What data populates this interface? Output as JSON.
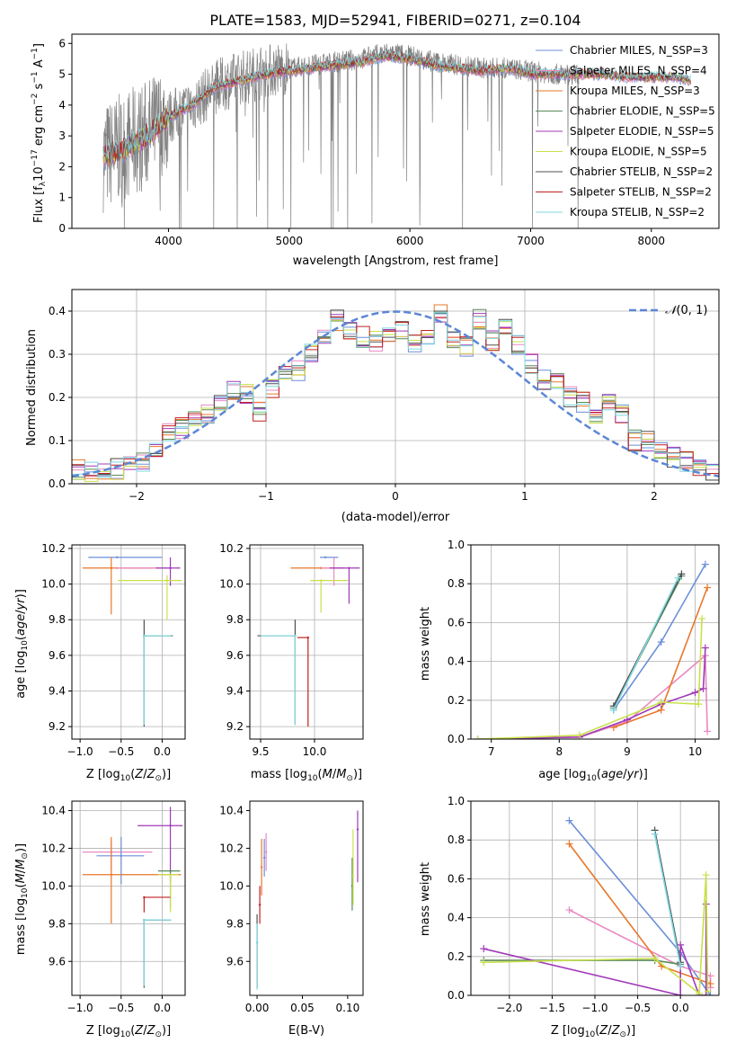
{
  "figure": {
    "title": "PLATE=1583, MJD=52941, FIBERID=0271, z=0.104"
  },
  "chart_data": [
    {
      "type": "line",
      "panel": "spectrum",
      "title": "PLATE=1583, MJD=52941, FIBERID=0271, z=0.104",
      "xlabel": "wavelength [Angstrom, rest frame]",
      "ylabel": "Flux [f_λ10^-17 erg cm^-2 s^-1 A^-1]",
      "xlim": [
        3200,
        8560
      ],
      "ylim": [
        0,
        6.3
      ],
      "xticks": [
        4000,
        5000,
        6000,
        7000,
        8000
      ],
      "yticks": [
        0,
        1,
        2,
        3,
        4,
        5,
        6
      ],
      "grid": false,
      "legend_position": "upper-right",
      "data_series": {
        "name": "",
        "color": "#808080",
        "x": [
          3460,
          3600,
          3800,
          4000,
          4200,
          4400,
          4600,
          4800,
          5000,
          5200,
          5400,
          5600,
          5800,
          6000,
          6200,
          6400,
          6600,
          6800,
          7000,
          7200,
          7400
        ],
        "y": [
          2.3,
          2.6,
          3.0,
          3.6,
          4.0,
          4.6,
          4.9,
          5.1,
          5.2,
          5.3,
          5.4,
          5.5,
          5.7,
          5.6,
          5.4,
          5.3,
          5.2,
          5.2,
          5.1,
          5.0,
          5.0
        ]
      },
      "models": [
        {
          "name": "Chabrier MILES, N_SSP=3",
          "color": "#6b8fd8"
        },
        {
          "name": "Salpeter MILES, N_SSP=4",
          "color": "#e88ac2"
        },
        {
          "name": "Kroupa MILES, N_SSP=3",
          "color": "#e8772b"
        },
        {
          "name": "Chabrier ELODIE, N_SSP=5",
          "color": "#5b8a5b"
        },
        {
          "name": "Salpeter ELODIE, N_SSP=5",
          "color": "#a03ab8"
        },
        {
          "name": "Kroupa ELODIE, N_SSP=5",
          "color": "#c8e04a"
        },
        {
          "name": "Chabrier STELIB, N_SSP=2",
          "color": "#505050"
        },
        {
          "name": "Salpeter STELIB, N_SSP=2",
          "color": "#c02020"
        },
        {
          "name": "Kroupa STELIB, N_SSP=2",
          "color": "#7fd8e0"
        }
      ],
      "model_x": [
        3460,
        3600,
        3800,
        4000,
        4200,
        4400,
        4600,
        4800,
        5000,
        5200,
        5400,
        5600,
        5800,
        6000,
        6200,
        6400,
        6600,
        6800,
        7000,
        7200,
        7400,
        7600,
        7800,
        8000,
        8200,
        8330
      ],
      "model_y": [
        2.3,
        2.5,
        2.9,
        3.6,
        4.0,
        4.6,
        4.8,
        5.0,
        5.1,
        5.2,
        5.3,
        5.4,
        5.6,
        5.5,
        5.3,
        5.2,
        5.1,
        5.2,
        5.0,
        5.0,
        5.0,
        5.0,
        4.9,
        4.9,
        4.9,
        4.8
      ]
    },
    {
      "type": "step",
      "panel": "residuals",
      "xlabel": "(data-model)/error",
      "ylabel": "Normed distribution",
      "xlim": [
        -2.5,
        2.5
      ],
      "ylim": [
        0,
        0.45
      ],
      "xticks": [
        -2,
        -1,
        0,
        1,
        2
      ],
      "yticks": [
        0.0,
        0.1,
        0.2,
        0.3,
        0.4
      ],
      "grid": true,
      "legend_position": "upper-right",
      "legend": "N(0,1)",
      "gaussian_color": "#5b87d6",
      "bin_centers": [
        -2.45,
        -2.35,
        -2.25,
        -2.15,
        -2.05,
        -1.95,
        -1.85,
        -1.75,
        -1.65,
        -1.55,
        -1.45,
        -1.35,
        -1.25,
        -1.15,
        -1.05,
        -0.95,
        -0.85,
        -0.75,
        -0.65,
        -0.55,
        -0.45,
        -0.35,
        -0.25,
        -0.15,
        -0.05,
        0.05,
        0.15,
        0.25,
        0.35,
        0.45,
        0.55,
        0.65,
        0.75,
        0.85,
        0.95,
        1.05,
        1.15,
        1.25,
        1.35,
        1.45,
        1.55,
        1.65,
        1.75,
        1.85,
        1.95,
        2.05,
        2.15,
        2.25,
        2.35,
        2.45
      ],
      "histogram": [
        0.035,
        0.03,
        0.028,
        0.035,
        0.04,
        0.05,
        0.07,
        0.12,
        0.13,
        0.15,
        0.16,
        0.19,
        0.22,
        0.21,
        0.17,
        0.22,
        0.25,
        0.26,
        0.3,
        0.34,
        0.38,
        0.36,
        0.34,
        0.33,
        0.34,
        0.36,
        0.33,
        0.34,
        0.39,
        0.34,
        0.32,
        0.38,
        0.33,
        0.36,
        0.32,
        0.28,
        0.24,
        0.23,
        0.2,
        0.19,
        0.16,
        0.19,
        0.16,
        0.1,
        0.1,
        0.08,
        0.06,
        0.05,
        0.03,
        0.03
      ]
    },
    {
      "type": "errorbar",
      "panel": "age-vs-Z",
      "xlabel": "Z [log10(Z/Z⊙)]",
      "ylabel": "age  [log10(age/yr)]",
      "xlim": [
        -1.1,
        0.28
      ],
      "ylim": [
        9.13,
        10.22
      ],
      "xticks": [
        -1.0,
        -0.5,
        0.0
      ],
      "yticks": [
        9.2,
        9.4,
        9.6,
        9.8,
        10.0,
        10.2
      ],
      "grid": true,
      "points": [
        {
          "x": -0.55,
          "y": 10.15,
          "xerr": [
            0.35,
            0.55
          ],
          "yerr": [
            0.0,
            0.0
          ],
          "color": "#6b8fd8"
        },
        {
          "x": -0.62,
          "y": 10.09,
          "xerr": [
            0.35,
            0.52
          ],
          "yerr": [
            0.26,
            0.06
          ],
          "color": "#e8772b"
        },
        {
          "x": -0.55,
          "y": 10.09,
          "xerr": [
            0.0,
            0.65
          ],
          "yerr": [
            0.0,
            0.0
          ],
          "color": "#e88ac2"
        },
        {
          "x": 0.1,
          "y": 10.09,
          "xerr": [
            0.18,
            0.12
          ],
          "yerr": [
            0.1,
            0.06
          ],
          "color": "#a03ab8"
        },
        {
          "x": 0.06,
          "y": 10.02,
          "xerr": [
            0.6,
            0.18
          ],
          "yerr": [
            0.22,
            0.03
          ],
          "color": "#c8e04a"
        },
        {
          "x": -0.22,
          "y": 9.71,
          "xerr": [
            0.0,
            0.35
          ],
          "yerr": [
            0.51,
            0.09
          ],
          "color": "#505050"
        },
        {
          "x": -0.22,
          "y": 9.71,
          "xerr": [
            0.0,
            0.35
          ],
          "yerr": [
            0.0,
            0.0
          ],
          "color": "#5b8a5b"
        },
        {
          "x": -0.22,
          "y": 9.71,
          "xerr": [
            0.0,
            0.33
          ],
          "yerr": [
            0.5,
            0.0
          ],
          "color": "#7fd8e0"
        }
      ]
    },
    {
      "type": "errorbar",
      "panel": "age-vs-mass",
      "xlabel": "mass [log10(M/M⊙)]",
      "ylabel": "",
      "xlim": [
        9.4,
        10.45
      ],
      "ylim": [
        9.13,
        10.22
      ],
      "xticks": [
        9.5,
        10.0
      ],
      "yticks": [
        9.2,
        9.4,
        9.6,
        9.8,
        10.0,
        10.2
      ],
      "grid": true,
      "points": [
        {
          "x": 10.1,
          "y": 10.15,
          "xerr": [
            0.05,
            0.12
          ],
          "yerr": [
            0.0,
            0.0
          ],
          "color": "#6b8fd8"
        },
        {
          "x": 10.06,
          "y": 10.09,
          "xerr": [
            0.28,
            0.2
          ],
          "yerr": [
            0.0,
            0.0
          ],
          "color": "#e8772b"
        },
        {
          "x": 10.18,
          "y": 10.09,
          "xerr": [
            0.12,
            0.1
          ],
          "yerr": [
            0.1,
            0.06
          ],
          "color": "#e88ac2"
        },
        {
          "x": 10.32,
          "y": 10.09,
          "xerr": [
            0.18,
            0.1
          ],
          "yerr": [
            0.2,
            0.0
          ],
          "color": "#a03ab8"
        },
        {
          "x": 10.06,
          "y": 10.02,
          "xerr": [
            0.1,
            0.25
          ],
          "yerr": [
            0.18,
            0.0
          ],
          "color": "#c8e04a"
        },
        {
          "x": 9.82,
          "y": 9.71,
          "xerr": [
            0.35,
            0.0
          ],
          "yerr": [
            0.5,
            0.09
          ],
          "color": "#505050"
        },
        {
          "x": 9.94,
          "y": 9.7,
          "xerr": [
            0.1,
            0.0
          ],
          "yerr": [
            0.5,
            0.0
          ],
          "color": "#c02020"
        },
        {
          "x": 9.82,
          "y": 9.71,
          "xerr": [
            0.32,
            0.0
          ],
          "yerr": [
            0.5,
            0.0
          ],
          "color": "#7fd8e0"
        }
      ]
    },
    {
      "type": "line",
      "panel": "mass-weight-vs-age",
      "xlabel": "age  [log10(age/yr)]",
      "ylabel": "mass weight",
      "xlim": [
        6.7,
        10.35
      ],
      "ylim": [
        0,
        1.0
      ],
      "xticks": [
        7,
        8,
        9,
        10
      ],
      "yticks": [
        0.0,
        0.2,
        0.4,
        0.6,
        0.8,
        1.0
      ],
      "grid": true,
      "series": [
        {
          "name": "Chabrier MILES, N_SSP=3",
          "color": "#6b8fd8",
          "x": [
            8.8,
            9.5,
            10.15
          ],
          "y": [
            0.15,
            0.5,
            0.9
          ]
        },
        {
          "name": "Salpeter MILES, N_SSP=4",
          "color": "#e88ac2",
          "x": [
            6.8,
            8.3,
            9.0,
            10.15,
            10.18
          ],
          "y": [
            0.0,
            0.01,
            0.09,
            0.43,
            0.04
          ]
        },
        {
          "name": "Kroupa MILES, N_SSP=3",
          "color": "#e8772b",
          "x": [
            8.8,
            9.5,
            10.18
          ],
          "y": [
            0.06,
            0.15,
            0.78
          ]
        },
        {
          "name": "Chabrier ELODIE, N_SSP=5",
          "color": "#5b8a5b",
          "x": [
            8.8,
            9.8
          ],
          "y": [
            0.16,
            0.84
          ]
        },
        {
          "name": "Salpeter ELODIE, N_SSP=5",
          "color": "#a03ab8",
          "x": [
            6.8,
            8.3,
            9.0,
            9.5,
            10.0,
            10.12,
            10.15
          ],
          "y": [
            0.0,
            0.01,
            0.1,
            0.18,
            0.24,
            0.26,
            0.47
          ]
        },
        {
          "name": "Kroupa ELODIE, N_SSP=5",
          "color": "#c8e04a",
          "x": [
            6.8,
            8.3,
            9.5,
            10.05,
            10.1
          ],
          "y": [
            0.0,
            0.02,
            0.19,
            0.18,
            0.62
          ]
        },
        {
          "name": "Chabrier STELIB, N_SSP=2",
          "color": "#505050",
          "x": [
            8.8,
            9.8
          ],
          "y": [
            0.17,
            0.85
          ]
        },
        {
          "name": "Kroupa STELIB, N_SSP=2",
          "color": "#7fd8e0",
          "x": [
            8.8,
            9.75
          ],
          "y": [
            0.15,
            0.83
          ]
        }
      ]
    },
    {
      "type": "errorbar",
      "panel": "mass-vs-Z",
      "xlabel": "Z [log10(Z/Z⊙)]",
      "ylabel": "mass [log10(M/M⊙)]",
      "xlim": [
        -1.1,
        0.28
      ],
      "ylim": [
        9.42,
        10.45
      ],
      "xticks": [
        -1.0,
        -0.5,
        0.0
      ],
      "yticks": [
        9.6,
        9.8,
        10.0,
        10.2,
        10.4
      ],
      "grid": true,
      "points": [
        {
          "x": -0.62,
          "y": 10.18,
          "xerr": [
            0.35,
            0.5
          ],
          "yerr": [
            0.1,
            0.06
          ],
          "color": "#e88ac2"
        },
        {
          "x": -0.5,
          "y": 10.16,
          "xerr": [
            0.3,
            0.28
          ],
          "yerr": [
            0.15,
            0.1
          ],
          "color": "#6b8fd8"
        },
        {
          "x": -0.62,
          "y": 10.06,
          "xerr": [
            0.35,
            0.85
          ],
          "yerr": [
            0.26,
            0.2
          ],
          "color": "#e8772b"
        },
        {
          "x": 0.1,
          "y": 10.32,
          "xerr": [
            0.4,
            0.15
          ],
          "yerr": [
            0.3,
            0.1
          ],
          "color": "#a03ab8"
        },
        {
          "x": 0.1,
          "y": 10.08,
          "xerr": [
            0.15,
            0.12
          ],
          "yerr": [
            0.2,
            0.0
          ],
          "color": "#5b8a5b"
        },
        {
          "x": 0.1,
          "y": 10.06,
          "xerr": [
            0.15,
            0.1
          ],
          "yerr": [
            0.2,
            0.0
          ],
          "color": "#c8e04a"
        },
        {
          "x": -0.22,
          "y": 9.94,
          "xerr": [
            0.0,
            0.32
          ],
          "yerr": [
            0.08,
            0.0
          ],
          "color": "#c02020"
        },
        {
          "x": -0.22,
          "y": 9.82,
          "xerr": [
            0.0,
            0.33
          ],
          "yerr": [
            0.36,
            0.0
          ],
          "color": "#505050"
        },
        {
          "x": -0.22,
          "y": 9.82,
          "xerr": [
            0.0,
            0.33
          ],
          "yerr": [
            0.35,
            0.0
          ],
          "color": "#7fd8e0"
        }
      ]
    },
    {
      "type": "errorbar",
      "panel": "mass-vs-EBV",
      "xlabel": "E(B-V)",
      "ylabel": "",
      "xlim": [
        -0.008,
        0.117
      ],
      "ylim": [
        9.42,
        10.45
      ],
      "xticks": [
        0.0,
        0.05,
        0.1
      ],
      "yticks": [
        9.6,
        9.8,
        10.0,
        10.2,
        10.4
      ],
      "grid": false,
      "points": [
        {
          "x": 0.0,
          "y": 9.7,
          "xerr": [
            0,
            0
          ],
          "yerr": [
            0.24,
            0.15
          ],
          "color": "#505050"
        },
        {
          "x": 0.003,
          "y": 9.9,
          "xerr": [
            0,
            0
          ],
          "yerr": [
            0.1,
            0.1
          ],
          "color": "#c02020"
        },
        {
          "x": 0.0,
          "y": 9.7,
          "xerr": [
            0,
            0
          ],
          "yerr": [
            0.25,
            0.1
          ],
          "color": "#7fd8e0"
        },
        {
          "x": 0.005,
          "y": 10.1,
          "xerr": [
            0,
            0
          ],
          "yerr": [
            0.15,
            0.15
          ],
          "color": "#e8772b"
        },
        {
          "x": 0.008,
          "y": 10.15,
          "xerr": [
            0,
            0
          ],
          "yerr": [
            0.1,
            0.1
          ],
          "color": "#6b8fd8"
        },
        {
          "x": 0.01,
          "y": 10.18,
          "xerr": [
            0,
            0
          ],
          "yerr": [
            0.1,
            0.1
          ],
          "color": "#e88ac2"
        },
        {
          "x": 0.105,
          "y": 10.0,
          "xerr": [
            0,
            0
          ],
          "yerr": [
            0.13,
            0.15
          ],
          "color": "#5b8a5b"
        },
        {
          "x": 0.106,
          "y": 10.05,
          "xerr": [
            0,
            0
          ],
          "yerr": [
            0.15,
            0.25
          ],
          "color": "#c8e04a"
        },
        {
          "x": 0.111,
          "y": 10.3,
          "xerr": [
            0,
            0
          ],
          "yerr": [
            0.28,
            0.1
          ],
          "color": "#a03ab8"
        }
      ]
    },
    {
      "type": "line",
      "panel": "mass-weight-vs-Z",
      "xlabel": "Z [log10(Z/Z⊙)]",
      "ylabel": "mass weight",
      "xlim": [
        -2.45,
        0.45
      ],
      "ylim": [
        0,
        1.0
      ],
      "xticks": [
        -2.0,
        -1.5,
        -1.0,
        -0.5,
        0.0
      ],
      "yticks": [
        0.0,
        0.2,
        0.4,
        0.6,
        0.8,
        1.0
      ],
      "grid": true,
      "series": [
        {
          "name": "Chabrier MILES, N_SSP=3",
          "color": "#6b8fd8",
          "x": [
            -1.3,
            0.0,
            0.35
          ],
          "y": [
            0.9,
            0.22,
            0.0
          ]
        },
        {
          "name": "Salpeter MILES, N_SSP=4",
          "color": "#e88ac2",
          "x": [
            -1.3,
            0.0,
            0.35,
            0.35
          ],
          "y": [
            0.44,
            0.15,
            0.1,
            0.04
          ]
        },
        {
          "name": "Kroupa MILES, N_SSP=3",
          "color": "#e8772b",
          "x": [
            -1.3,
            -0.22,
            0.35
          ],
          "y": [
            0.78,
            0.15,
            0.06
          ]
        },
        {
          "name": "Chabrier ELODIE, N_SSP=5",
          "color": "#5b8a5b",
          "x": [
            -2.3,
            -0.3,
            0.0
          ],
          "y": [
            0.18,
            0.18,
            0.16
          ]
        },
        {
          "name": "Salpeter ELODIE, N_SSP=5",
          "color": "#a03ab8",
          "x": [
            -2.3,
            0.0,
            0.0,
            0.22,
            0.3,
            0.3
          ],
          "y": [
            0.24,
            0.0,
            0.26,
            0.0,
            0.0,
            0.47
          ]
        },
        {
          "name": "Kroupa ELODIE, N_SSP=5",
          "color": "#c8e04a",
          "x": [
            -2.3,
            -0.3,
            0.22,
            0.3,
            0.32
          ],
          "y": [
            0.17,
            0.19,
            0.01,
            0.62,
            0.02
          ]
        },
        {
          "name": "Chabrier STELIB, N_SSP=2",
          "color": "#505050",
          "x": [
            -0.3,
            0.0
          ],
          "y": [
            0.85,
            0.17
          ]
        },
        {
          "name": "Kroupa STELIB, N_SSP=2",
          "color": "#7fd8e0",
          "x": [
            -0.3,
            0.0
          ],
          "y": [
            0.83,
            0.15
          ]
        }
      ]
    }
  ]
}
